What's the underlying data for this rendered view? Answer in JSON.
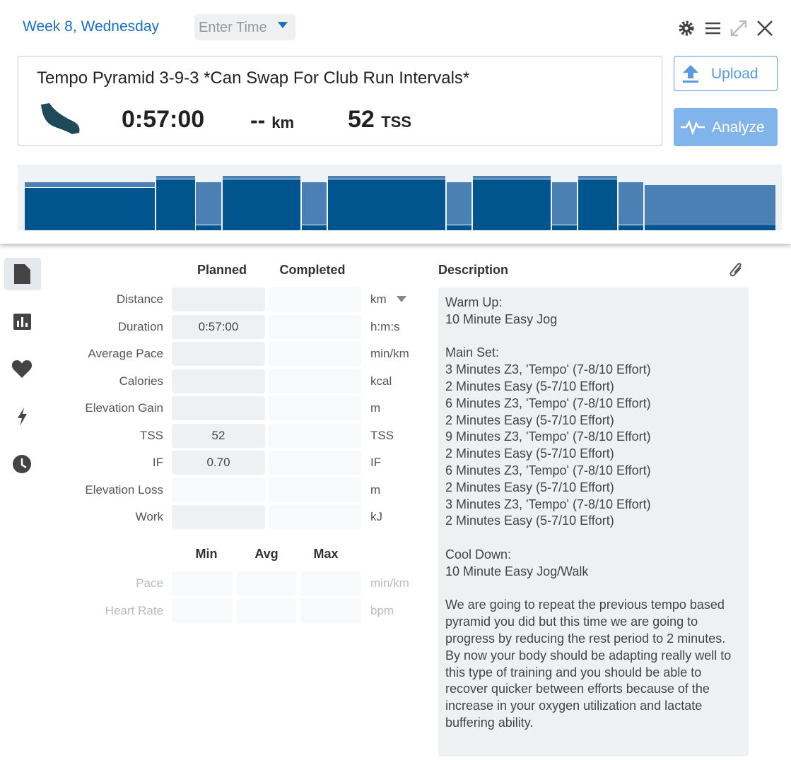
{
  "header": {
    "title": "Week 8, Wednesday",
    "time_placeholder": "Enter Time"
  },
  "workout": {
    "name": "Tempo Pyramid 3-9-3 *Can Swap For Club Run Intervals*",
    "duration": "0:57:00",
    "distance": "--",
    "distance_unit": "km",
    "tss": "52",
    "tss_unit": "TSS"
  },
  "buttons": {
    "upload": "Upload",
    "analyze": "Analyze"
  },
  "table": {
    "headers": [
      "Planned",
      "Completed"
    ],
    "rows": [
      {
        "label": "Distance",
        "unit": "km"
      },
      {
        "label": "Duration",
        "planned": "0:57:00",
        "unit": "h:m:s"
      },
      {
        "label": "Average Pace",
        "unit": "min/km"
      },
      {
        "label": "Calories",
        "unit": "kcal"
      },
      {
        "label": "Elevation Gain",
        "unit": "m"
      },
      {
        "label": "TSS",
        "planned": "52",
        "unit": "TSS"
      },
      {
        "label": "IF",
        "planned": "0.70",
        "unit": "IF"
      },
      {
        "label": "Elevation Loss",
        "unit": "m"
      },
      {
        "label": "Work",
        "unit": "kJ"
      }
    ]
  },
  "range_table": {
    "headers": [
      "Min",
      "Avg",
      "Max"
    ],
    "rows": [
      {
        "label": "Pace",
        "unit": "min/km"
      },
      {
        "label": "Heart Rate",
        "unit": "bpm"
      }
    ]
  },
  "description": {
    "title": "Description",
    "paragraphs": [
      [
        "Warm Up:",
        "10 Minute Easy Jog"
      ],
      [
        "Main Set:",
        "3 Minutes Z3, 'Tempo' (7-8/10 Effort)",
        "2 Minutes Easy (5-7/10 Effort)",
        "6 Minutes Z3, 'Tempo' (7-8/10 Effort)",
        "2 Minutes Easy (5-7/10 Effort)",
        "9 Minutes Z3, 'Tempo' (7-8/10 Effort)",
        "2 Minutes Easy (5-7/10 Effort)",
        "6 Minutes Z3, 'Tempo' (7-8/10 Effort)",
        "2 Minutes Easy (5-7/10 Effort)",
        "3 Minutes Z3, 'Tempo' (7-8/10 Effort)",
        "2 Minutes Easy (5-7/10 Effort)"
      ],
      [
        "Cool Down:",
        "10 Minute Easy Jog/Walk"
      ],
      [
        "We are going to repeat the previous tempo based pyramid you did but this time we are going to progress by reducing the rest period to 2 minutes.",
        "By now your body should be adapting really well to this type of training and you should be able to recover quicker between efforts because of the increase in your oxygen utilization and lactate buffering ability."
      ]
    ]
  }
}
